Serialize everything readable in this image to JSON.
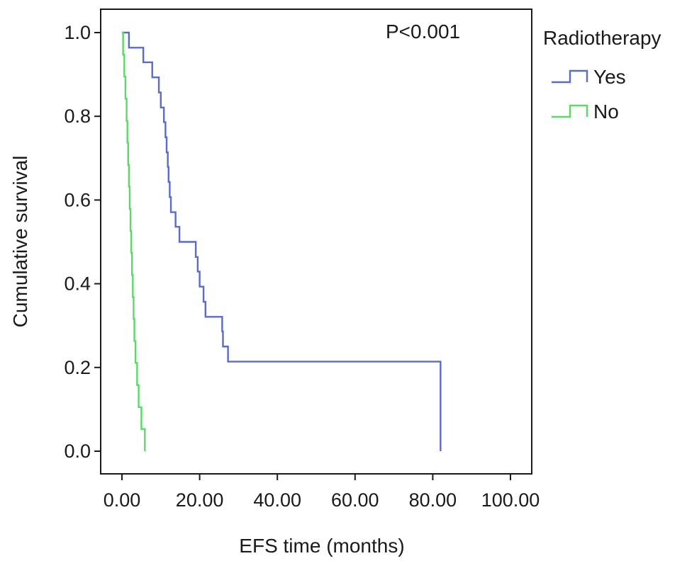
{
  "chart_data": {
    "type": "line",
    "subtype": "kaplan-meier-step",
    "title": "",
    "xlabel": "EFS time (months)",
    "ylabel": "Cumulative survival",
    "xlim": [
      0,
      100
    ],
    "ylim": [
      0,
      1
    ],
    "x_ticks": [
      0,
      20,
      40,
      60,
      80,
      100
    ],
    "x_tick_labels": [
      "0.00",
      "20.00",
      "40.00",
      "60.00",
      "80.00",
      "100.00"
    ],
    "y_ticks": [
      0,
      0.2,
      0.4,
      0.6,
      0.8,
      1.0
    ],
    "y_tick_labels": [
      "0.0",
      "0.2",
      "0.4",
      "0.6",
      "0.8",
      "1.0"
    ],
    "grid": false,
    "annotation": "P<0.001",
    "legend": {
      "title": "Radiotherapy",
      "position": "right-outside-top"
    },
    "series": [
      {
        "name": "Yes",
        "color": "#5b6bc8",
        "steps": [
          [
            0.0,
            1.0
          ],
          [
            1.8,
            0.964
          ],
          [
            5.5,
            0.929
          ],
          [
            7.8,
            0.893
          ],
          [
            9.5,
            0.857
          ],
          [
            10.0,
            0.821
          ],
          [
            10.8,
            0.786
          ],
          [
            11.2,
            0.75
          ],
          [
            11.5,
            0.714
          ],
          [
            11.8,
            0.679
          ],
          [
            12.0,
            0.643
          ],
          [
            12.3,
            0.607
          ],
          [
            12.6,
            0.571
          ],
          [
            13.8,
            0.536
          ],
          [
            14.8,
            0.5
          ],
          [
            19.0,
            0.464
          ],
          [
            19.5,
            0.429
          ],
          [
            20.0,
            0.393
          ],
          [
            21.0,
            0.357
          ],
          [
            21.5,
            0.321
          ],
          [
            25.8,
            0.286
          ],
          [
            26.0,
            0.25
          ],
          [
            27.3,
            0.214
          ],
          [
            82.0,
            0.0
          ]
        ]
      },
      {
        "name": "No",
        "color": "#5dd66a",
        "steps": [
          [
            0.0,
            1.0
          ],
          [
            0.3,
            0.947
          ],
          [
            0.6,
            0.895
          ],
          [
            0.9,
            0.842
          ],
          [
            1.2,
            0.789
          ],
          [
            1.4,
            0.737
          ],
          [
            1.6,
            0.684
          ],
          [
            1.8,
            0.632
          ],
          [
            2.0,
            0.579
          ],
          [
            2.2,
            0.526
          ],
          [
            2.4,
            0.474
          ],
          [
            2.6,
            0.421
          ],
          [
            2.8,
            0.368
          ],
          [
            3.0,
            0.316
          ],
          [
            3.2,
            0.263
          ],
          [
            3.5,
            0.211
          ],
          [
            3.9,
            0.158
          ],
          [
            4.3,
            0.105
          ],
          [
            5.0,
            0.053
          ],
          [
            5.9,
            0.0
          ]
        ]
      }
    ]
  }
}
